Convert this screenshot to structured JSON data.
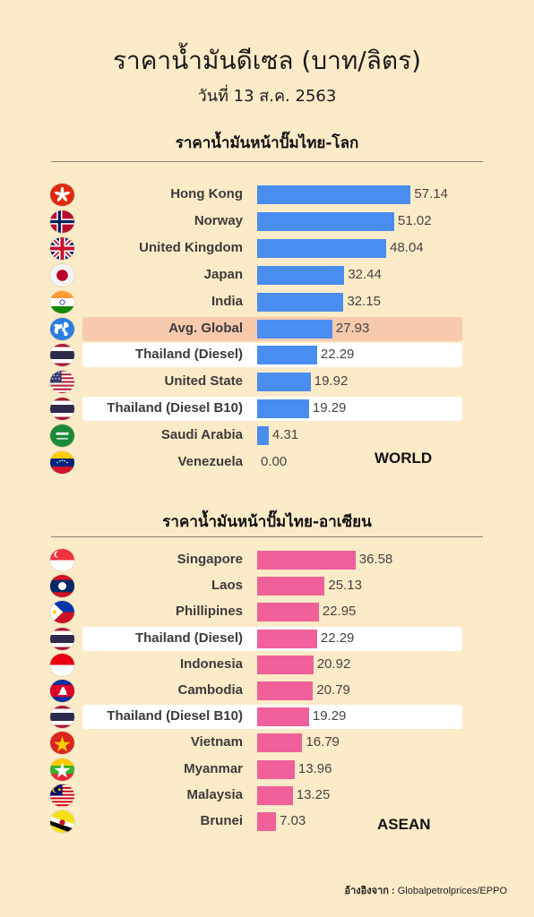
{
  "title": "ราคาน้ำมันดีเซล (บาท/ลิตร)",
  "subtitle": "วันที่ 13 ส.ค. 2563",
  "source": {
    "prefix": "อ้างอิงจาก :",
    "text": "Globalpetrolprices/EPPO"
  },
  "chart_data": [
    {
      "type": "bar",
      "orientation": "horizontal",
      "title": "ราคาน้ำมันหน้าปั๊มไทย-โลก",
      "tag": "WORLD",
      "bar_color": "#4a8df0",
      "xlim": [
        0,
        60
      ],
      "highlight_colors": {
        "thailand": "#ffffff",
        "average": "#f7c9ad"
      },
      "categories": [
        "Hong Kong",
        "Norway",
        "United Kingdom",
        "Japan",
        "India",
        "Avg. Global",
        "Thailand (Diesel)",
        "United State",
        "Thailand (Diesel B10)",
        "Saudi Arabia",
        "Venezuela"
      ],
      "values": [
        57.14,
        51.02,
        48.04,
        32.44,
        32.15,
        27.93,
        22.29,
        19.92,
        19.29,
        4.31,
        0.0
      ],
      "value_labels": [
        "57.14",
        "51.02",
        "48.04",
        "32.44",
        "32.15",
        "27.93",
        "22.29",
        "19.92",
        "19.29",
        "4.31",
        "0.00"
      ],
      "highlight": [
        "none",
        "none",
        "none",
        "none",
        "none",
        "average",
        "thailand",
        "none",
        "thailand",
        "none",
        "none"
      ],
      "flags": [
        "hong-kong-flag-icon",
        "norway-flag-icon",
        "united-kingdom-flag-icon",
        "japan-flag-icon",
        "india-flag-icon",
        "globe-icon",
        "thailand-flag-icon",
        "united-states-flag-icon",
        "thailand-flag-icon",
        "saudi-arabia-flag-icon",
        "venezuela-flag-icon"
      ]
    },
    {
      "type": "bar",
      "orientation": "horizontal",
      "title": "ราคาน้ำมันหน้าปั๊มไทย-อาเซียน",
      "tag": "ASEAN",
      "bar_color": "#f0609a",
      "xlim": [
        0,
        60
      ],
      "highlight_colors": {
        "thailand": "#ffffff"
      },
      "categories": [
        "Singapore",
        "Laos",
        "Phillipines",
        "Thailand (Diesel)",
        "Indonesia",
        "Cambodia",
        "Thailand (Diesel B10)",
        "Vietnam",
        "Myanmar",
        "Malaysia",
        "Brunei"
      ],
      "values": [
        36.58,
        25.13,
        22.95,
        22.29,
        20.92,
        20.79,
        19.29,
        16.79,
        13.96,
        13.25,
        7.03
      ],
      "value_labels": [
        "36.58",
        "25.13",
        "22.95",
        "22.29",
        "20.92",
        "20.79",
        "19.29",
        "16.79",
        "13.96",
        "13.25",
        "7.03"
      ],
      "highlight": [
        "none",
        "none",
        "none",
        "thailand",
        "none",
        "none",
        "thailand",
        "none",
        "none",
        "none",
        "none"
      ],
      "flags": [
        "singapore-flag-icon",
        "laos-flag-icon",
        "philippines-flag-icon",
        "thailand-flag-icon",
        "indonesia-flag-icon",
        "cambodia-flag-icon",
        "thailand-flag-icon",
        "vietnam-flag-icon",
        "myanmar-flag-icon",
        "malaysia-flag-icon",
        "brunei-flag-icon"
      ]
    }
  ]
}
